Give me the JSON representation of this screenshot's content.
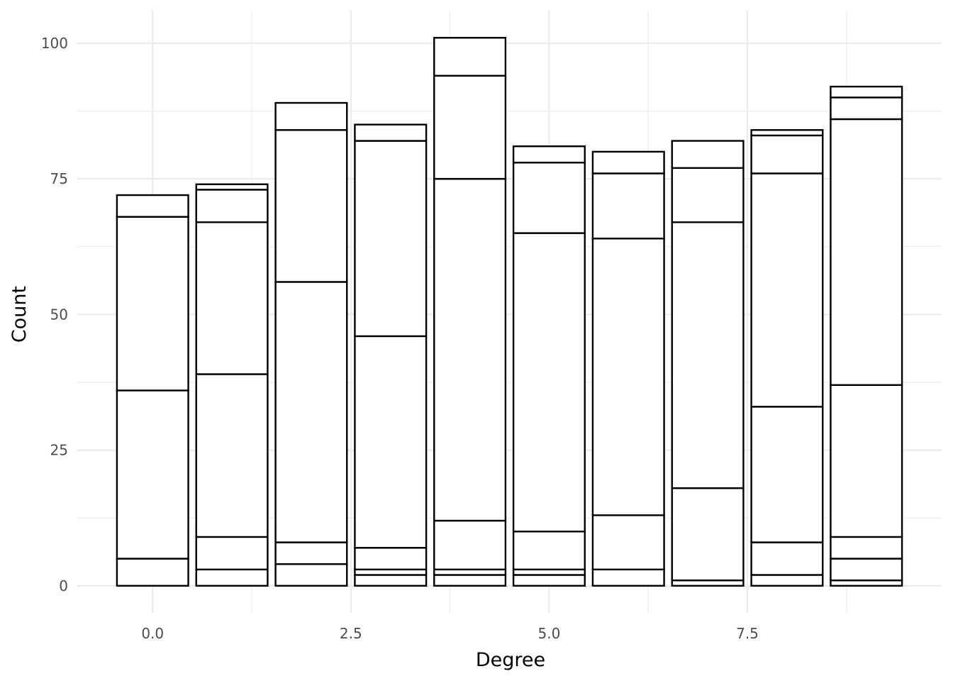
{
  "chart_data": {
    "type": "bar",
    "subtype": "stacked-histogram",
    "title": "",
    "xlabel": "Degree",
    "ylabel": "Count",
    "x_ticks": [
      "0.0",
      "2.5",
      "5.0",
      "7.5"
    ],
    "x_tick_values": [
      0,
      2.5,
      5,
      7.5
    ],
    "y_ticks": [
      "0",
      "25",
      "50",
      "75",
      "100"
    ],
    "y_tick_values": [
      0,
      25,
      50,
      75,
      100
    ],
    "xlim": [
      -0.95,
      9.95
    ],
    "ylim": [
      -5,
      106
    ],
    "grid": true,
    "bar_fill": "#ffffff",
    "bar_stroke": "#000000",
    "bins": [
      {
        "x": 0,
        "boundaries": [
          5,
          36,
          68,
          72
        ]
      },
      {
        "x": 1,
        "boundaries": [
          3,
          9,
          39,
          67,
          73,
          74
        ]
      },
      {
        "x": 2,
        "boundaries": [
          4,
          8,
          56,
          84,
          89
        ]
      },
      {
        "x": 3,
        "boundaries": [
          2,
          3,
          7,
          46,
          82,
          85
        ]
      },
      {
        "x": 4,
        "boundaries": [
          2,
          3,
          12,
          75,
          94,
          101
        ]
      },
      {
        "x": 5,
        "boundaries": [
          2,
          3,
          10,
          65,
          78,
          81
        ]
      },
      {
        "x": 6,
        "boundaries": [
          3,
          13,
          64,
          76,
          80
        ]
      },
      {
        "x": 7,
        "boundaries": [
          1,
          18,
          67,
          77,
          82
        ]
      },
      {
        "x": 8,
        "boundaries": [
          2,
          8,
          33,
          76,
          83,
          84
        ]
      },
      {
        "x": 9,
        "boundaries": [
          1,
          5,
          9,
          37,
          86,
          90,
          92
        ]
      }
    ],
    "totals": [
      72,
      74,
      89,
      85,
      101,
      81,
      80,
      82,
      84,
      92
    ]
  }
}
